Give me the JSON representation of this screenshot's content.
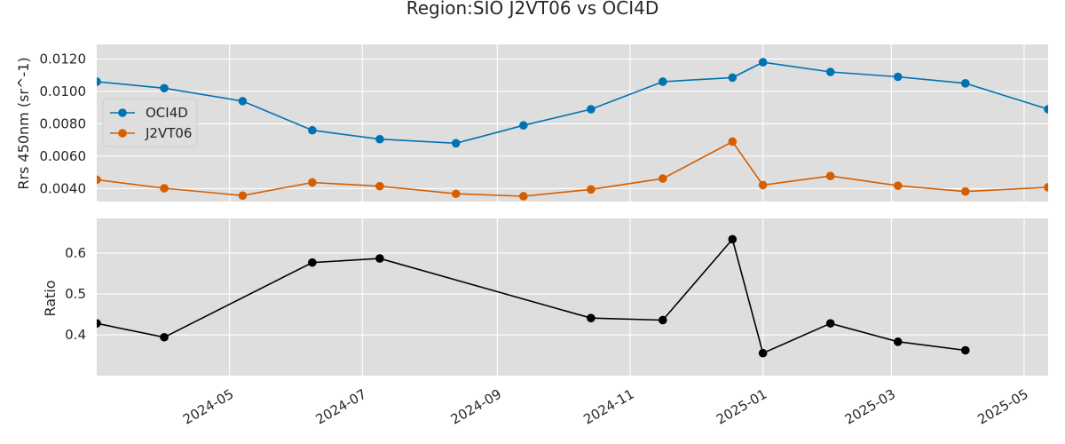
{
  "chart_data": [
    {
      "type": "line",
      "title": "Region:SIO J2VT06 vs OCI4D",
      "xlabel": "",
      "ylabel": "Rrs 450nm (sr^-1)",
      "ylim": [
        0.0032,
        0.0129
      ],
      "xlim": [
        "2024-03-01",
        "2025-05-12"
      ],
      "yticks": [
        "0.0040",
        "0.0060",
        "0.0080",
        "0.0100",
        "0.0120"
      ],
      "grid": true,
      "legend_position": "center-left",
      "series": [
        {
          "name": "OCI4D",
          "color": "#0072B2",
          "x": [
            "2024-03-01",
            "2024-04-01",
            "2024-05-07",
            "2024-06-08",
            "2024-07-09",
            "2024-08-13",
            "2024-09-13",
            "2024-10-14",
            "2024-11-16",
            "2024-12-18",
            "2025-01-01",
            "2025-02-01",
            "2025-03-04",
            "2025-04-04",
            "2025-05-12"
          ],
          "values": [
            0.0106,
            0.0102,
            0.0094,
            0.0076,
            0.00705,
            0.0068,
            0.0079,
            0.0089,
            0.0106,
            0.01085,
            0.0118,
            0.0112,
            0.0109,
            0.0105,
            0.0089
          ]
        },
        {
          "name": "J2VT06",
          "color": "#D55E00",
          "x": [
            "2024-03-01",
            "2024-04-01",
            "2024-05-07",
            "2024-06-08",
            "2024-07-09",
            "2024-08-13",
            "2024-09-13",
            "2024-10-14",
            "2024-11-16",
            "2024-12-18",
            "2025-01-01",
            "2025-02-01",
            "2025-03-04",
            "2025-04-04",
            "2025-05-12"
          ],
          "values": [
            0.00455,
            0.00402,
            0.00357,
            0.00438,
            0.00415,
            0.00368,
            0.00353,
            0.00395,
            0.00462,
            0.0069,
            0.00422,
            0.00478,
            0.00418,
            0.00382,
            0.00408
          ]
        }
      ]
    },
    {
      "type": "line",
      "xlabel": "",
      "ylabel": "Ratio",
      "ylim": [
        0.3,
        0.685
      ],
      "xlim": [
        "2024-03-01",
        "2025-05-12"
      ],
      "yticks": [
        "0.4",
        "0.5",
        "0.6"
      ],
      "grid": true,
      "series": [
        {
          "color": "#000000",
          "x": [
            "2024-03-01",
            "2024-04-01",
            "2024-06-08",
            "2024-07-09",
            "2024-10-14",
            "2024-11-16",
            "2024-12-18",
            "2025-01-01",
            "2025-02-01",
            "2025-03-04",
            "2025-04-04"
          ],
          "values": [
            0.428,
            0.394,
            0.577,
            0.587,
            0.441,
            0.436,
            0.634,
            0.355,
            0.428,
            0.383,
            0.362
          ]
        }
      ]
    }
  ],
  "x_axis": {
    "ticks": [
      {
        "date": "2024-05-01",
        "label": "2024-05"
      },
      {
        "date": "2024-07-01",
        "label": "2024-07"
      },
      {
        "date": "2024-09-01",
        "label": "2024-09"
      },
      {
        "date": "2024-11-01",
        "label": "2024-11"
      },
      {
        "date": "2025-01-01",
        "label": "2025-01"
      },
      {
        "date": "2025-03-01",
        "label": "2025-03"
      },
      {
        "date": "2025-05-01",
        "label": "2025-05"
      }
    ]
  },
  "colors": {
    "panel_bg": "#dedede",
    "grid": "#ffffff",
    "text": "#262626"
  }
}
